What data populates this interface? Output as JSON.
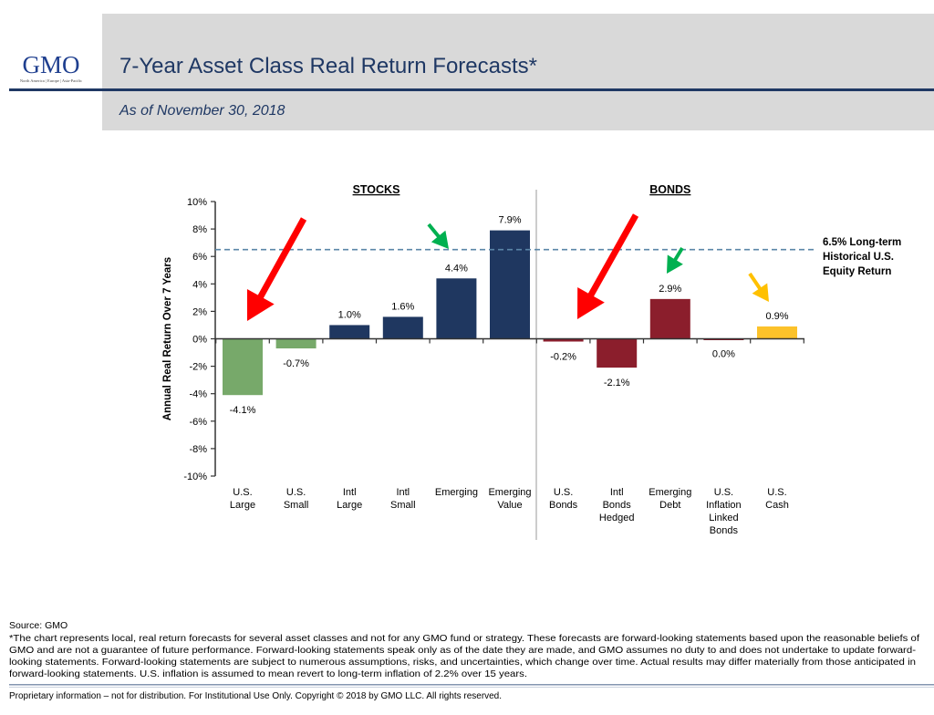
{
  "header": {
    "logo_text": "GMO",
    "logo_tagline": "North America | Europe | Asia-Pacific",
    "title": "7-Year Asset Class Real Return Forecasts*",
    "subtitle": "As of November 30, 2018"
  },
  "chart_data": {
    "type": "bar",
    "title": "",
    "ylabel": "Annual Real Return Over 7 Years",
    "ylim": [
      -10,
      10
    ],
    "yticks": [
      "10%",
      "8%",
      "6%",
      "4%",
      "2%",
      "0%",
      "-2%",
      "-4%",
      "-6%",
      "-8%",
      "-10%"
    ],
    "ytick_values": [
      10,
      8,
      6,
      4,
      2,
      0,
      -2,
      -4,
      -6,
      -8,
      -10
    ],
    "grid": false,
    "groups": [
      {
        "label": "STOCKS",
        "categories": [
          0,
          1,
          2,
          3,
          4,
          5
        ]
      },
      {
        "label": "BONDS",
        "categories": [
          6,
          7,
          8,
          9,
          10
        ]
      }
    ],
    "categories": [
      [
        "U.S.",
        "Large"
      ],
      [
        "U.S.",
        "Small"
      ],
      [
        "Intl",
        "Large"
      ],
      [
        "Intl",
        "Small"
      ],
      [
        "Emerging"
      ],
      [
        "Emerging",
        "Value"
      ],
      [
        "U.S.",
        "Bonds"
      ],
      [
        "Intl",
        "Bonds",
        "Hedged"
      ],
      [
        "Emerging",
        "Debt"
      ],
      [
        "U.S.",
        "Inflation",
        "Linked",
        "Bonds"
      ],
      [
        "U.S.",
        "Cash"
      ]
    ],
    "values": [
      -4.1,
      -0.7,
      1.0,
      1.6,
      4.4,
      7.9,
      -0.2,
      -2.1,
      2.9,
      0.0,
      0.9
    ],
    "data_labels": [
      "-4.1%",
      "-0.7%",
      "1.0%",
      "1.6%",
      "4.4%",
      "7.9%",
      "-0.2%",
      "-2.1%",
      "2.9%",
      "0.0%",
      "0.9%"
    ],
    "bar_colors": [
      "#77a96a",
      "#77a96a",
      "#1f3760",
      "#1f3760",
      "#1f3760",
      "#1f3760",
      "#8b1e2c",
      "#8b1e2c",
      "#8b1e2c",
      "#8b1e2c",
      "#fcc22a"
    ],
    "reference_line": {
      "value": 6.5,
      "style": "dashed",
      "color": "#5b86a8",
      "label": [
        "6.5% Long-term",
        "Historical U.S.",
        "Equity Return"
      ]
    },
    "annotations": [
      {
        "type": "arrow",
        "color": "#ff0000",
        "points_to": "U.S. Large"
      },
      {
        "type": "arrow",
        "color": "#00b050",
        "points_to": "Emerging"
      },
      {
        "type": "arrow",
        "color": "#ff0000",
        "points_to": "U.S. Bonds"
      },
      {
        "type": "arrow",
        "color": "#00b050",
        "points_to": "Emerging Debt"
      },
      {
        "type": "arrow",
        "color": "#ffc000",
        "points_to": "U.S. Cash"
      }
    ]
  },
  "footnotes": {
    "source": "Source: GMO",
    "lines": [
      "*The chart represents local, real return forecasts for several asset classes and not for any GMO fund or strategy.  These forecasts are forward-looking statements based upon the reasonable beliefs of",
      "GMO and are not a guarantee of future performance.  Forward-looking statements speak only as of the date they are made, and GMO assumes no duty to and does not undertake to update forward-",
      "looking statements.  Forward-looking statements are subject to numerous assumptions, risks, and uncertainties, which change over time.  Actual results may differ materially from those anticipated in",
      "forward-looking statements. U.S. inflation is assumed to mean revert to long-term inflation of 2.2% over 15 years."
    ],
    "proprietary": "Proprietary information – not for distribution. For Institutional Use Only. Copyright © 2018 by GMO LLC.  All rights reserved."
  },
  "colors": {
    "navy": "#1f3864",
    "header_bg": "#d9d9d9"
  }
}
